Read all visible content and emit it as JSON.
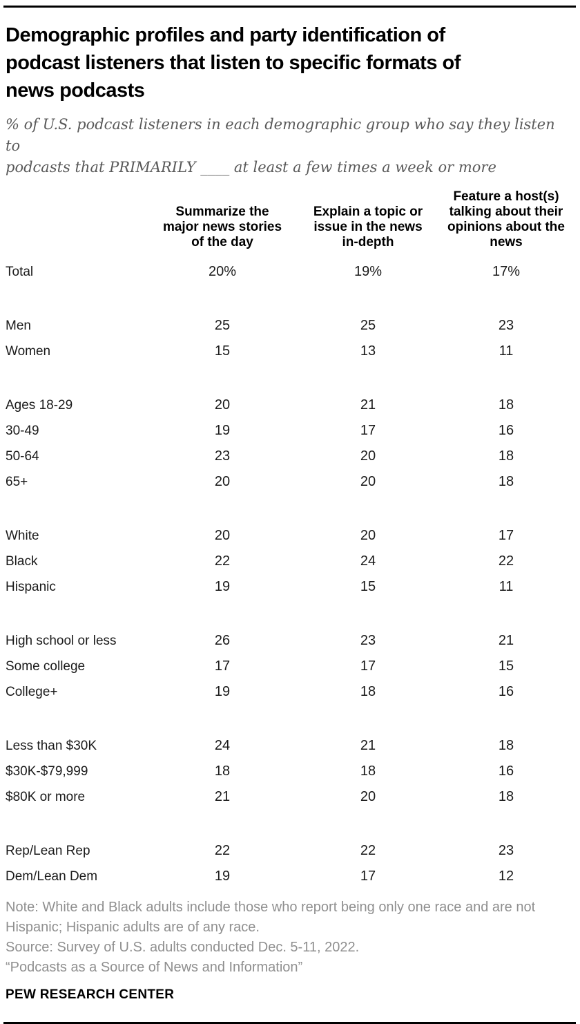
{
  "header": {
    "title_lines": [
      "Demographic profiles and party identification of",
      "podcast listeners that listen to specific formats of",
      "news podcasts"
    ],
    "subtitle_lines": [
      "% of U.S. podcast listeners in each demographic group who say they listen to",
      "podcasts that PRIMARILY ____ at least a few times a week or more"
    ]
  },
  "chart_data": {
    "type": "table",
    "title": "Demographic profiles and party identification of podcast listeners that listen to specific formats of news podcasts",
    "subtitle": "% of U.S. podcast listeners in each demographic group who say they listen to podcasts that PRIMARILY ____ at least a few times a week or more",
    "columns": [
      "Summarize the major news stories of the day",
      "Explain a topic or issue in the news in-depth",
      "Feature a host(s) talking about their opinions about the news"
    ],
    "column_lines": [
      [
        "Summarize the",
        "major news stories",
        "of the day"
      ],
      [
        "Explain a topic or",
        "issue in the news",
        "in-depth"
      ],
      [
        "Feature a host(s)",
        "talking about their",
        "opinions about the",
        "news"
      ]
    ],
    "groups": [
      {
        "rows": [
          {
            "label": "Total",
            "values": [
              "20%",
              "19%",
              "17%"
            ]
          }
        ]
      },
      {
        "rows": [
          {
            "label": "Men",
            "values": [
              "25",
              "25",
              "23"
            ]
          },
          {
            "label": "Women",
            "values": [
              "15",
              "13",
              "11"
            ]
          }
        ]
      },
      {
        "rows": [
          {
            "label": "Ages 18-29",
            "values": [
              "20",
              "21",
              "18"
            ]
          },
          {
            "label": "30-49",
            "values": [
              "19",
              "17",
              "16"
            ]
          },
          {
            "label": "50-64",
            "values": [
              "23",
              "20",
              "18"
            ]
          },
          {
            "label": "65+",
            "values": [
              "20",
              "20",
              "18"
            ]
          }
        ]
      },
      {
        "rows": [
          {
            "label": "White",
            "values": [
              "20",
              "20",
              "17"
            ]
          },
          {
            "label": "Black",
            "values": [
              "22",
              "24",
              "22"
            ]
          },
          {
            "label": "Hispanic",
            "values": [
              "19",
              "15",
              "11"
            ]
          }
        ]
      },
      {
        "rows": [
          {
            "label": "High school or less",
            "values": [
              "26",
              "23",
              "21"
            ]
          },
          {
            "label": "Some college",
            "values": [
              "17",
              "17",
              "15"
            ]
          },
          {
            "label": "College+",
            "values": [
              "19",
              "18",
              "16"
            ]
          }
        ]
      },
      {
        "rows": [
          {
            "label": "Less than $30K",
            "values": [
              "24",
              "21",
              "18"
            ]
          },
          {
            "label": "$30K-$79,999",
            "values": [
              "18",
              "18",
              "16"
            ]
          },
          {
            "label": "$80K or more",
            "values": [
              "21",
              "20",
              "18"
            ]
          }
        ]
      },
      {
        "rows": [
          {
            "label": "Rep/Lean Rep",
            "values": [
              "22",
              "22",
              "23"
            ]
          },
          {
            "label": "Dem/Lean Dem",
            "values": [
              "19",
              "17",
              "12"
            ]
          }
        ]
      }
    ]
  },
  "footer": {
    "note_lines": [
      "Note: White and Black adults include those who report being only one race and are not",
      "Hispanic; Hispanic adults are of any race.",
      "Source: Survey of U.S. adults conducted Dec. 5-11, 2022.",
      "“Podcasts as a Source of News and Information”"
    ],
    "brand": "PEW RESEARCH CENTER"
  },
  "colors": {
    "title": "#000000",
    "subtitle_text": "#595959",
    "note_text": "#8f8f8f",
    "rule": "#000000"
  }
}
